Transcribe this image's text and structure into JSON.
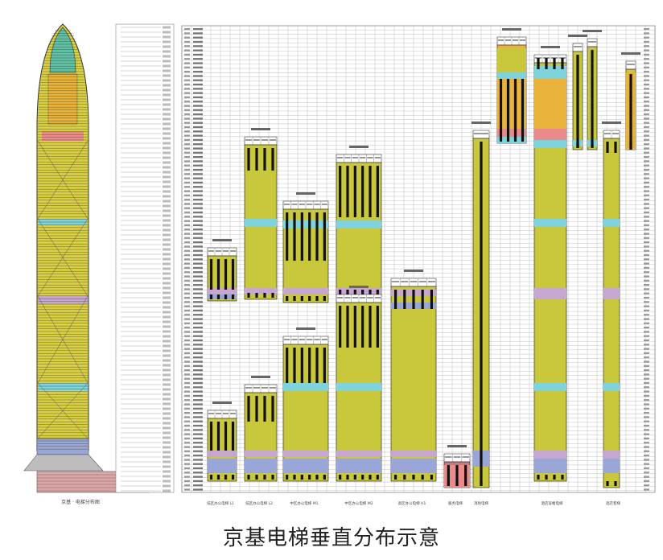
{
  "caption": "京基电梯垂直分布示意",
  "colors": {
    "shaft": "#c9c73b",
    "refuge": "#7fd3dc",
    "mech": "#c7a6cf",
    "lobby": "#9aa6d8",
    "hotel": "#e9b23a",
    "pink": "#ea8a8a",
    "car": "#111111",
    "grid": "#9a9a9a",
    "tower_glass": "#d9cf45",
    "tower_crown": "#5fc0a8"
  },
  "legend_labels": {
    "tower": "京基 · 电梯分布图",
    "low_1": "低区办公电梯 L1",
    "low_2": "低区办公电梯 L2",
    "mid_1": "中区办公电梯 M1",
    "mid_2": "中区办公电梯 M2",
    "high_1": "高区办公电梯 H1",
    "service": "服务电梯",
    "fire": "消防电梯",
    "hotel": "酒店穿梭电梯",
    "hotel_2": "酒店客梯"
  },
  "elevator_groups": [
    {
      "key": "low_1",
      "caption": "低区办公电梯组",
      "cars": 4
    },
    {
      "key": "low_2",
      "caption": "低区办公电梯组",
      "cars": 4
    },
    {
      "key": "mid_1",
      "caption": "中区办公电梯组",
      "cars": 6
    },
    {
      "key": "mid_2",
      "caption": "中区办公电梯组",
      "cars": 6
    },
    {
      "key": "high_1",
      "caption": "高区办公电梯组",
      "cars": 6
    },
    {
      "key": "service",
      "caption": "服务电梯",
      "cars": 3
    },
    {
      "key": "fire",
      "caption": "消防电梯",
      "cars": 1
    },
    {
      "key": "hotel",
      "caption": "酒店穿梭电梯",
      "cars": 4
    },
    {
      "key": "hotel_2",
      "caption": "酒店客梯",
      "cars": 2
    }
  ]
}
